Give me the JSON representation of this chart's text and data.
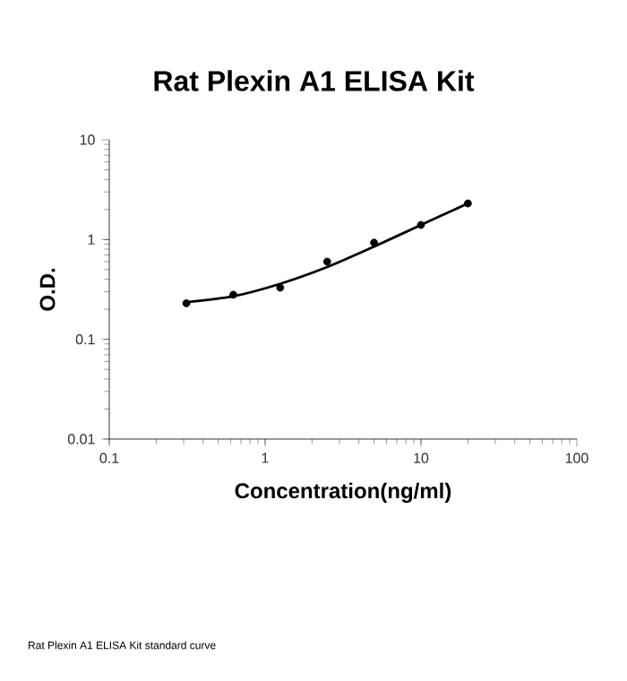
{
  "chart_data": {
    "type": "scatter",
    "title": "Rat Plexin A1 ELISA Kit",
    "xlabel": "Concentration(ng/ml)",
    "ylabel": "O.D.",
    "log": "xy",
    "grid": false,
    "xlim": [
      0.1,
      100
    ],
    "ylim": [
      0.01,
      10
    ],
    "xticks": [
      0.1,
      1,
      10,
      100
    ],
    "yticks": [
      0.01,
      0.1,
      1,
      10
    ],
    "annotations": [
      "Rat Plexin A1 ELISA Kit standard curve"
    ],
    "series": [
      {
        "color": "#000000",
        "marker": "circle",
        "x": [
          0.3125,
          0.625,
          1.25,
          2.5,
          5,
          10,
          20
        ],
        "values": [
          0.23,
          0.28,
          0.33,
          0.6,
          0.93,
          1.4,
          2.3
        ]
      },
      {
        "type": "line",
        "color": "#000000",
        "marker": "none",
        "line_style": "solid",
        "x": [
          0.3125,
          0.625,
          1.25,
          2.5,
          5,
          10,
          20
        ],
        "values": [
          0.235,
          0.27,
          0.36,
          0.53,
          0.85,
          1.4,
          2.3
        ]
      }
    ]
  }
}
